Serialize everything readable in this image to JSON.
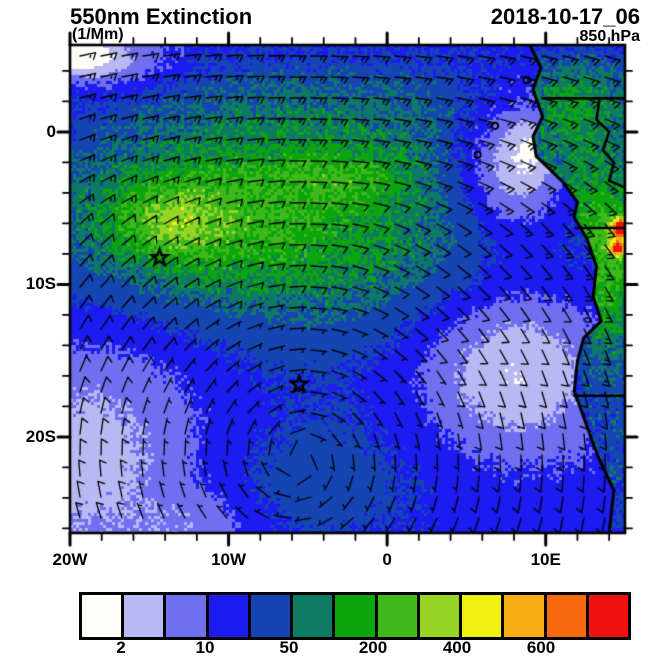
{
  "header": {
    "title": "550nm Extinction",
    "units": "(1/Mm)",
    "datetime": "2018-10-17_06",
    "level": "850 hPa"
  },
  "chart_data": {
    "type": "heatmap",
    "title": "550nm Extinction",
    "subtitle_units": "(1/Mm)",
    "timestamp": "2018-10-17_06",
    "pressure_level": "850 hPa",
    "projection": "lat-lon map of the southeast Atlantic and southwest Africa",
    "x_axis": {
      "tick_labels": [
        "20W",
        "10W",
        "0",
        "10E"
      ],
      "tick_lons": [
        -20,
        -10,
        0,
        10
      ],
      "minor_tick_step_deg": 2,
      "range_lon": [
        -20,
        15
      ]
    },
    "y_axis": {
      "tick_labels": [
        "0",
        "10S",
        "20S"
      ],
      "tick_lats": [
        0,
        -10,
        -20
      ],
      "minor_tick_step_deg": 2,
      "range_lat": [
        5.7,
        -26.3
      ]
    },
    "colorbar": {
      "labels": [
        "2",
        "10",
        "50",
        "200",
        "400",
        "600"
      ],
      "labeled_boundary_indices": [
        1,
        3,
        5,
        7,
        9,
        11
      ],
      "colors": [
        "#fefef6",
        "#b8b8f2",
        "#6f6ff0",
        "#1c1bf0",
        "#1545b2",
        "#0f7a64",
        "#0da50d",
        "#3fb81c",
        "#98d426",
        "#f0f011",
        "#f7ae14",
        "#f8690f",
        "#f21111"
      ]
    },
    "markers": [
      {
        "name": "star-marker-1",
        "lon": -14.35,
        "lat": -8.25
      },
      {
        "name": "star-marker-2",
        "lon": -5.55,
        "lat": -16.55
      }
    ],
    "islands": [
      {
        "name": "island-circle-1",
        "lon": 8.8,
        "lat": 3.4
      },
      {
        "name": "island-circle-2",
        "lon": 6.8,
        "lat": 0.4
      },
      {
        "name": "island-circle-3",
        "lon": 5.7,
        "lat": -1.5
      }
    ],
    "wind_overlay": {
      "style": "barbs",
      "color": "#000000",
      "grid_spacing_px": 21,
      "circulation": "anticyclonic gyre",
      "gyre_center_lon": -5.5,
      "gyre_center_lat": -21.5
    },
    "background_level_index": 3,
    "field_features": [
      {
        "c": [
          -6.0,
          -7.5
        ],
        "s": [
          13.0,
          5.0
        ],
        "a": 2.3,
        "side": "ocean"
      },
      {
        "c": [
          -11.0,
          -4.8
        ],
        "s": [
          6.5,
          3.2
        ],
        "a": 1.7,
        "side": "ocean"
      },
      {
        "c": [
          -13.6,
          -6.0
        ],
        "s": [
          2.3,
          1.7
        ],
        "a": 1.7,
        "side": "ocean"
      },
      {
        "c": [
          -3.5,
          1.5
        ],
        "s": [
          10.0,
          2.8
        ],
        "a": 1.3,
        "side": "ocean"
      },
      {
        "c": [
          -2.5,
          -3.0
        ],
        "s": [
          3.0,
          1.2
        ],
        "a": 1.4,
        "side": "ocean"
      },
      {
        "c": [
          8.0,
          -2.3
        ],
        "s": [
          2.2,
          3.2
        ],
        "a": -3.0,
        "side": "ocean"
      },
      {
        "c": [
          9.5,
          -1.0
        ],
        "s": [
          1.2,
          1.5
        ],
        "a": -1.2,
        "side": "ocean"
      },
      {
        "c": [
          -19.5,
          5.2
        ],
        "s": [
          1.6,
          1.1
        ],
        "a": -3.4,
        "side": "ocean"
      },
      {
        "c": [
          -16.5,
          4.5
        ],
        "s": [
          2.5,
          1.3
        ],
        "a": -1.6,
        "side": "ocean"
      },
      {
        "c": [
          -18.5,
          -21.0
        ],
        "s": [
          5.5,
          6.5
        ],
        "a": -2.0,
        "side": "ocean"
      },
      {
        "c": [
          -11.5,
          -25.8
        ],
        "s": [
          2.4,
          1.6
        ],
        "a": -1.0,
        "side": "ocean"
      },
      {
        "c": [
          8.0,
          -15.3
        ],
        "s": [
          4.2,
          4.0
        ],
        "a": -2.7,
        "side": "ocean"
      },
      {
        "c": [
          -5.0,
          -23.0
        ],
        "s": [
          6.0,
          3.5
        ],
        "a": 1.05,
        "side": "ocean"
      },
      {
        "c": [
          11.0,
          -5.0
        ],
        "s": [
          4.0,
          5.0
        ],
        "a": 2.2,
        "side": "land"
      },
      {
        "c": [
          14.0,
          -9.5
        ],
        "s": [
          1.5,
          4.5
        ],
        "a": 2.6,
        "side": "land"
      },
      {
        "c": [
          12.0,
          2.2
        ],
        "s": [
          3.0,
          2.0
        ],
        "a": 1.8,
        "side": "land"
      },
      {
        "c": [
          13.5,
          -22.0
        ],
        "s": [
          2.5,
          4.0
        ],
        "a": 1.0,
        "side": "land"
      },
      {
        "c": [
          14.8,
          -6.3
        ],
        "s": [
          0.45,
          0.45
        ],
        "a": 8.0,
        "side": "land"
      },
      {
        "c": [
          14.6,
          -7.6
        ],
        "s": [
          0.35,
          0.35
        ],
        "a": 6.5,
        "side": "land"
      }
    ],
    "coastline": [
      [
        9.0,
        5.7
      ],
      [
        9.7,
        4.2
      ],
      [
        9.2,
        2.8
      ],
      [
        9.8,
        1.0
      ],
      [
        9.2,
        -0.3
      ],
      [
        9.4,
        -1.6
      ],
      [
        11.1,
        -3.3
      ],
      [
        12.0,
        -4.6
      ],
      [
        11.8,
        -5.6
      ],
      [
        12.6,
        -7.0
      ],
      [
        13.2,
        -8.8
      ],
      [
        13.0,
        -10.8
      ],
      [
        13.5,
        -12.4
      ],
      [
        12.4,
        -13.5
      ],
      [
        12.0,
        -15.0
      ],
      [
        11.8,
        -17.0
      ],
      [
        12.5,
        -19.0
      ],
      [
        13.3,
        -21.3
      ],
      [
        14.3,
        -23.5
      ],
      [
        14.0,
        -26.3
      ]
    ],
    "borders": [
      [
        [
          9.8,
          2.2
        ],
        [
          14.9,
          2.2
        ]
      ],
      [
        [
          13.4,
          2.2
        ],
        [
          13.2,
          0.8
        ],
        [
          14.0,
          0.0
        ],
        [
          13.6,
          -1.2
        ],
        [
          14.3,
          -2.0
        ],
        [
          14.0,
          -3.2
        ],
        [
          14.9,
          -3.6
        ]
      ],
      [
        [
          11.9,
          -6.3
        ],
        [
          14.9,
          -6.3
        ]
      ],
      [
        [
          11.8,
          -17.3
        ],
        [
          14.9,
          -17.3
        ]
      ]
    ]
  }
}
